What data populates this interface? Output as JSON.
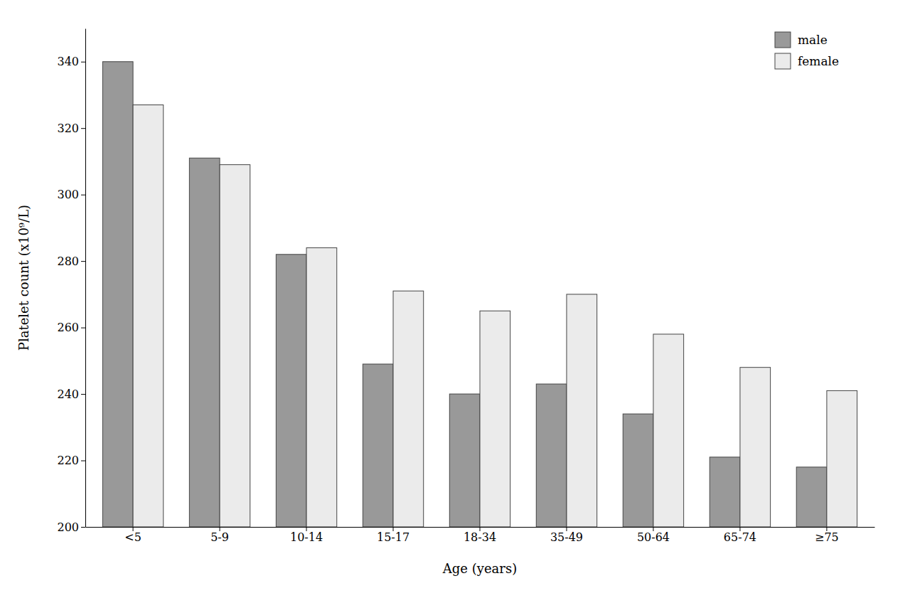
{
  "chart_data": {
    "type": "bar",
    "xlabel": "Age (years)",
    "ylabel": "Platelet count (x10⁹/L)",
    "categories": [
      "<5",
      "5-9",
      "10-14",
      "15-17",
      "18-34",
      "35-49",
      "50-64",
      "65-74",
      "≥75"
    ],
    "series": [
      {
        "name": "male",
        "color": "#999999",
        "values": [
          340,
          311,
          282,
          249,
          240,
          243,
          234,
          221,
          218
        ]
      },
      {
        "name": "female",
        "color": "#ebebeb",
        "values": [
          327,
          309,
          284,
          271,
          265,
          270,
          258,
          248,
          241
        ]
      }
    ],
    "ylim": [
      200,
      350
    ],
    "yticks": [
      200,
      220,
      240,
      260,
      280,
      300,
      320,
      340
    ],
    "grid": false,
    "legend": "upper right"
  }
}
